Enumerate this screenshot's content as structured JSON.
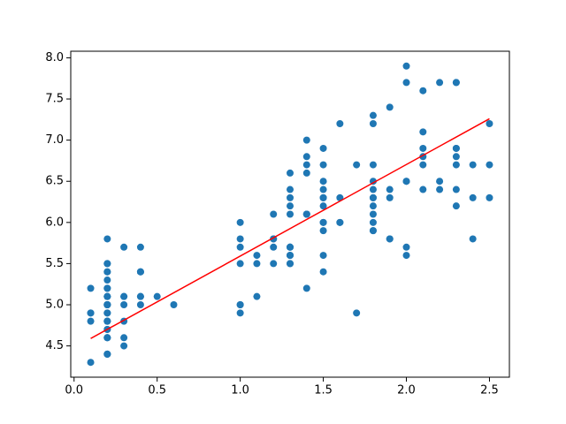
{
  "chart_data": {
    "type": "scatter",
    "xlim": [
      -0.02,
      2.62
    ],
    "ylim": [
      4.12,
      8.08
    ],
    "xticks": [
      {
        "value": 0,
        "label": "0.0"
      },
      0.5,
      {
        "value": 1,
        "label": "1.0"
      },
      1.5,
      {
        "value": 2,
        "label": "2.0"
      },
      2.5
    ],
    "yticks": [
      4.5,
      {
        "value": 5,
        "label": "5.0"
      },
      5.5,
      {
        "value": 6,
        "label": "6.0"
      },
      6.5,
      {
        "value": 7,
        "label": "7.0"
      },
      7.5,
      {
        "value": 8,
        "label": "8.0"
      }
    ],
    "grid": false,
    "series": [
      {
        "type": "scatter",
        "color": "#1f77b4",
        "x": [
          0.2,
          0.2,
          0.2,
          0.2,
          0.2,
          0.4,
          0.3,
          0.2,
          0.2,
          0.1,
          0.2,
          0.2,
          0.1,
          0.1,
          0.2,
          0.4,
          0.4,
          0.3,
          0.3,
          0.3,
          0.2,
          0.4,
          0.2,
          0.5,
          0.2,
          0.2,
          0.4,
          0.2,
          0.2,
          0.2,
          0.2,
          0.4,
          0.1,
          0.2,
          0.2,
          0.2,
          0.2,
          0.1,
          0.2,
          0.2,
          0.3,
          0.3,
          0.2,
          0.6,
          0.4,
          0.3,
          0.2,
          0.2,
          0.2,
          0.2,
          1.4,
          1.5,
          1.5,
          1.3,
          1.5,
          1.3,
          1.6,
          1.0,
          1.3,
          1.4,
          1.0,
          1.5,
          1.0,
          1.4,
          1.3,
          1.4,
          1.5,
          1.0,
          1.5,
          1.1,
          1.8,
          1.3,
          1.5,
          1.2,
          1.3,
          1.4,
          1.4,
          1.7,
          1.5,
          1.0,
          1.1,
          1.0,
          1.2,
          1.6,
          1.5,
          1.6,
          1.5,
          1.3,
          1.3,
          1.3,
          1.2,
          1.4,
          1.2,
          1.0,
          1.3,
          1.2,
          1.3,
          1.3,
          1.1,
          1.3,
          2.5,
          1.9,
          2.1,
          1.8,
          2.2,
          2.1,
          1.7,
          1.8,
          1.8,
          2.5,
          2.0,
          1.9,
          2.1,
          2.0,
          2.4,
          2.3,
          1.8,
          2.2,
          2.3,
          1.5,
          2.3,
          2.0,
          2.0,
          1.8,
          2.1,
          1.8,
          1.8,
          1.8,
          2.1,
          1.6,
          1.9,
          2.0,
          2.2,
          1.5,
          1.4,
          2.3,
          2.4,
          1.8,
          1.8,
          2.1,
          2.4,
          2.3,
          1.9,
          2.3,
          2.5,
          2.3,
          1.9,
          2.0,
          2.3,
          1.8
        ],
        "values": [
          5.1,
          4.9,
          4.7,
          4.6,
          5.0,
          5.4,
          4.6,
          5.0,
          4.4,
          4.9,
          5.4,
          4.8,
          4.8,
          4.3,
          5.8,
          5.7,
          5.4,
          5.1,
          5.7,
          5.1,
          5.4,
          5.1,
          4.6,
          5.1,
          4.8,
          5.0,
          5.0,
          5.2,
          5.2,
          4.7,
          4.8,
          5.4,
          5.2,
          5.5,
          4.9,
          5.0,
          5.5,
          4.9,
          4.4,
          5.1,
          5.0,
          4.5,
          4.4,
          5.0,
          5.1,
          4.8,
          5.1,
          4.6,
          5.3,
          5.0,
          7.0,
          6.4,
          6.9,
          5.5,
          6.5,
          5.7,
          6.3,
          4.9,
          6.6,
          5.2,
          5.0,
          5.9,
          6.0,
          6.1,
          5.6,
          6.7,
          5.6,
          5.8,
          6.2,
          5.6,
          5.9,
          6.1,
          6.3,
          6.1,
          6.4,
          6.6,
          6.8,
          6.7,
          6.0,
          5.7,
          5.5,
          5.5,
          5.8,
          6.0,
          5.4,
          6.0,
          6.7,
          6.3,
          5.6,
          5.5,
          5.5,
          6.1,
          5.8,
          5.0,
          5.6,
          5.7,
          5.7,
          6.2,
          5.1,
          5.7,
          6.3,
          5.8,
          7.1,
          6.3,
          6.5,
          7.6,
          4.9,
          7.3,
          6.7,
          7.2,
          6.5,
          6.4,
          6.8,
          5.7,
          5.8,
          6.4,
          6.5,
          7.7,
          7.7,
          6.0,
          6.9,
          5.6,
          7.7,
          6.3,
          6.7,
          7.2,
          6.2,
          6.1,
          6.4,
          7.2,
          7.4,
          7.9,
          6.4,
          6.3,
          6.1,
          7.7,
          6.3,
          6.4,
          6.0,
          6.9,
          6.7,
          6.9,
          5.8,
          6.8,
          6.7,
          6.7,
          6.3,
          6.5,
          6.2,
          5.9
        ]
      },
      {
        "type": "line",
        "color": "#ff0000",
        "x": [
          0.1,
          2.5
        ],
        "values": [
          4.59,
          7.26
        ]
      }
    ]
  }
}
